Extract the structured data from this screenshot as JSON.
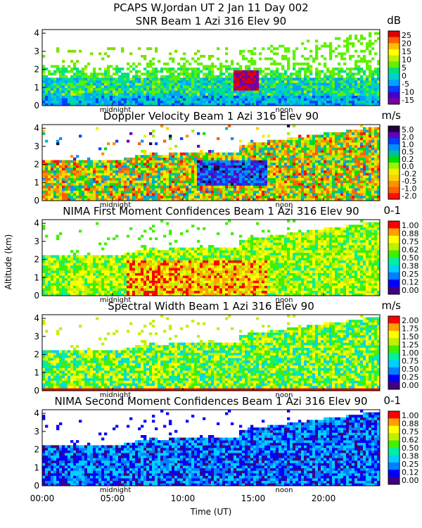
{
  "header": {
    "line1": "PCAPS W.Jordan UT   2 Jan 11 Day 002"
  },
  "chart_data": {
    "type": "heatmap",
    "xlabel": "Time (UT)",
    "ylabel": "Altitude (km)",
    "x_ticks": [
      "00:00",
      "05:00",
      "10:00",
      "15:00",
      "20:00"
    ],
    "x_tick_hours": [
      0,
      5,
      10,
      15,
      20
    ],
    "xlim": [
      0,
      24
    ],
    "ylim": [
      0,
      4.2
    ],
    "y_ticks": [
      "0",
      "1",
      "2",
      "3",
      "4"
    ],
    "time_markers": [
      {
        "label": "midnight",
        "hour": 5.2
      },
      {
        "label": "noon",
        "hour": 17.2
      }
    ],
    "panels": [
      {
        "title": "SNR Beam 1 Azi 316 Elev 90",
        "unit": "dB",
        "colorbar_labels": [
          "25",
          "20",
          "15",
          "10",
          "5",
          "0",
          "-5",
          "-10",
          "-15"
        ],
        "field": "snr"
      },
      {
        "title": "Doppler Velocity Beam 1 Azi 316 Elev 90",
        "unit": "m/s",
        "colorbar_labels": [
          "5.0",
          "2.0",
          "1.0",
          "0.5",
          "0.2",
          "0.0",
          "-0.2",
          "-0.5",
          "-1.0",
          "-2.0"
        ],
        "field": "doppler"
      },
      {
        "title": "NIMA First Moment Confidences Beam 1 Azi 316 Elev 90",
        "unit": "0-1",
        "colorbar_labels": [
          "1.00",
          "0.88",
          "0.75",
          "0.62",
          "0.50",
          "0.38",
          "0.25",
          "0.12",
          "0.00"
        ],
        "field": "conf1"
      },
      {
        "title": "Spectral Width Beam 1 Azi 316 Elev 90",
        "unit": "m/s",
        "colorbar_labels": [
          "2.00",
          "1.75",
          "1.50",
          "1.25",
          "1.00",
          "0.75",
          "0.50",
          "0.25",
          "0.00"
        ],
        "field": "width"
      },
      {
        "title": "NIMA Second Moment Confidences Beam 1 Azi 316 Elev 90",
        "unit": "0-1",
        "colorbar_labels": [
          "1.00",
          "0.88",
          "0.75",
          "0.62",
          "0.50",
          "0.38",
          "0.25",
          "0.12",
          "0.00"
        ],
        "field": "conf2"
      }
    ]
  },
  "colors": {
    "snr_scale": [
      "#7a00a0",
      "#4000d0",
      "#0040ff",
      "#00a0ff",
      "#00d0d0",
      "#00e080",
      "#60f000",
      "#c0f000",
      "#ffff00",
      "#ffc000",
      "#ff6000",
      "#e00000"
    ],
    "doppler_scale": [
      "#ff1000",
      "#ff6000",
      "#ff9000",
      "#ffd000",
      "#f0f000",
      "#a0f000",
      "#00e000",
      "#00c0a0",
      "#0090ff",
      "#0040ff",
      "#6000c0",
      "#200040"
    ],
    "conf_scale": [
      "#400080",
      "#0000ff",
      "#0080ff",
      "#00d0ff",
      "#00f0a0",
      "#40f000",
      "#c0f000",
      "#ffff00",
      "#ffa000",
      "#ff0000"
    ]
  }
}
